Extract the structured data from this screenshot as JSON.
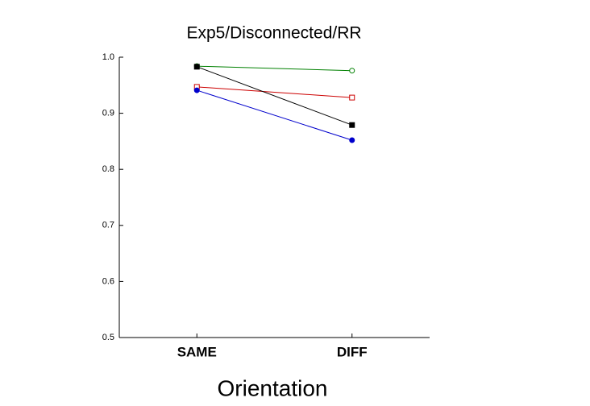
{
  "chart_data": {
    "type": "line",
    "title": "Exp5/Disconnected/RR",
    "x_label": "Orientation",
    "categories": [
      "SAME",
      "DIFF"
    ],
    "series": [
      {
        "color": "#008000",
        "marker": "circle",
        "filled": false,
        "values": [
          0.984,
          0.976
        ]
      },
      {
        "color": "#cc0000",
        "marker": "square",
        "filled": false,
        "values": [
          0.947,
          0.928
        ]
      },
      {
        "color": "#000000",
        "marker": "square",
        "filled": true,
        "values": [
          0.983,
          0.879
        ]
      },
      {
        "color": "#0000cc",
        "marker": "circle",
        "filled": true,
        "values": [
          0.941,
          0.852
        ]
      }
    ],
    "ylim": [
      0.5,
      1
    ],
    "yticks": [
      0.5,
      0.6,
      0.7,
      0.8,
      0.9,
      {
        "value": 1,
        "label": "1.0"
      }
    ]
  }
}
